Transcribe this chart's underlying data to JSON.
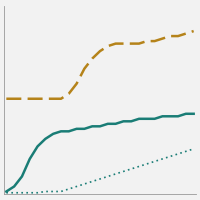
{
  "title": "",
  "background_color": "#f2f2f2",
  "plot_bg_color": "#f2f2f2",
  "years": [
    1995,
    1996,
    1997,
    1998,
    1999,
    2000,
    2001,
    2002,
    2003,
    2004,
    2005,
    2006,
    2007,
    2008,
    2009,
    2010,
    2011,
    2012,
    2013,
    2014,
    2015,
    2016,
    2017,
    2018,
    2019
  ],
  "line_dashed": [
    38,
    38,
    38,
    38,
    38,
    38,
    38,
    38,
    40,
    44,
    50,
    54,
    57,
    59,
    60,
    60,
    60,
    60,
    61,
    61,
    62,
    63,
    63,
    64,
    65
  ],
  "line_solid": [
    1,
    3,
    7,
    14,
    19,
    22,
    24,
    25,
    25,
    26,
    26,
    27,
    27,
    28,
    28,
    29,
    29,
    30,
    30,
    30,
    31,
    31,
    31,
    32,
    32
  ],
  "line_dotted": [
    0.5,
    0.5,
    0.5,
    0.5,
    0.5,
    1,
    1,
    1,
    2,
    3,
    4,
    5,
    6,
    7,
    8,
    9,
    10,
    11,
    12,
    13,
    14,
    15,
    16,
    17,
    18
  ],
  "dashed_color": "#b5831a",
  "solid_color": "#1a7d76",
  "dotted_color": "#1a7d76",
  "ylim": [
    0,
    75
  ],
  "xlim": [
    1995,
    2019
  ],
  "grid_color": "#cccccc",
  "grid_linewidth": 0.5,
  "dashed_linewidth": 1.8,
  "solid_linewidth": 1.8,
  "dotted_linewidth": 1.2,
  "border_color": "#999999"
}
